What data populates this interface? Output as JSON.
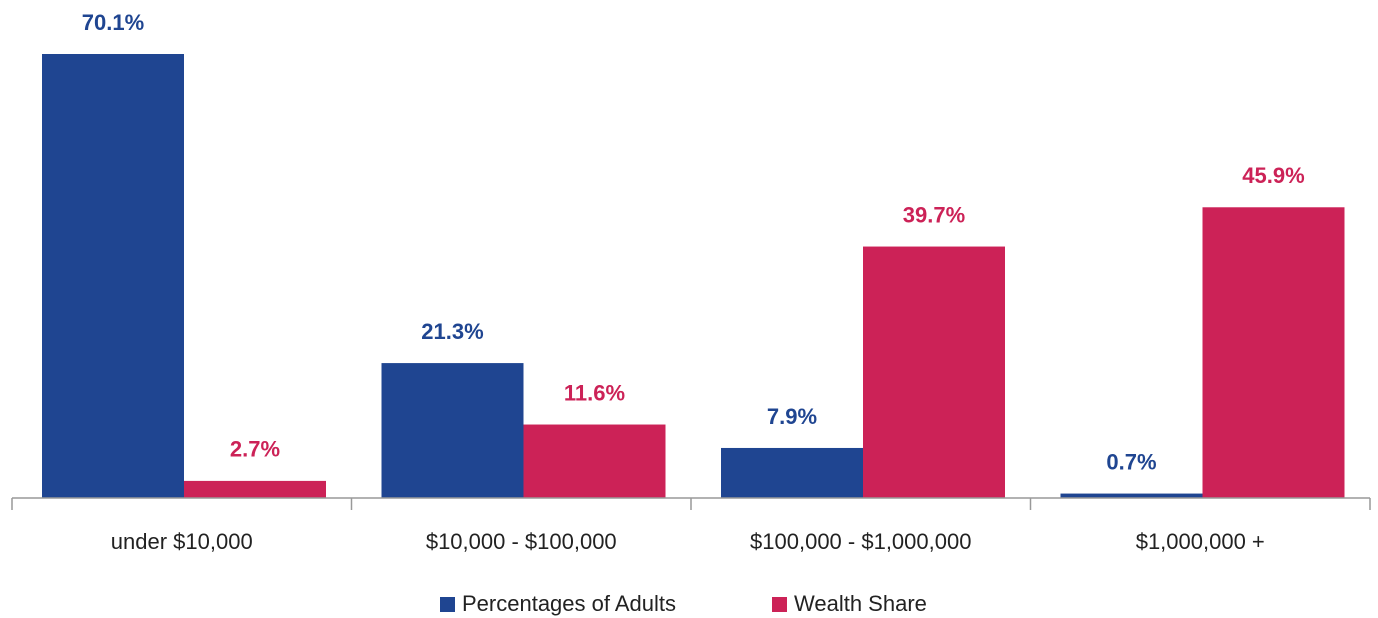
{
  "chart_data": {
    "type": "bar",
    "categories": [
      "under $10,000",
      "$10,000 - $100,000",
      "$100,000 - $1,000,000",
      "$1,000,000 +"
    ],
    "series": [
      {
        "name": "Percentages of Adults",
        "color": "#1f4591",
        "values": [
          70.1,
          21.3,
          7.9,
          0.7
        ],
        "value_labels": [
          "70.1%",
          "21.3%",
          "7.9%",
          "0.7%"
        ]
      },
      {
        "name": "Wealth Share",
        "color": "#cc2257",
        "values": [
          2.7,
          11.6,
          39.7,
          45.9
        ],
        "value_labels": [
          "2.7%",
          "11.6%",
          "39.7%",
          "45.9%"
        ]
      }
    ],
    "legend": "bottom"
  }
}
